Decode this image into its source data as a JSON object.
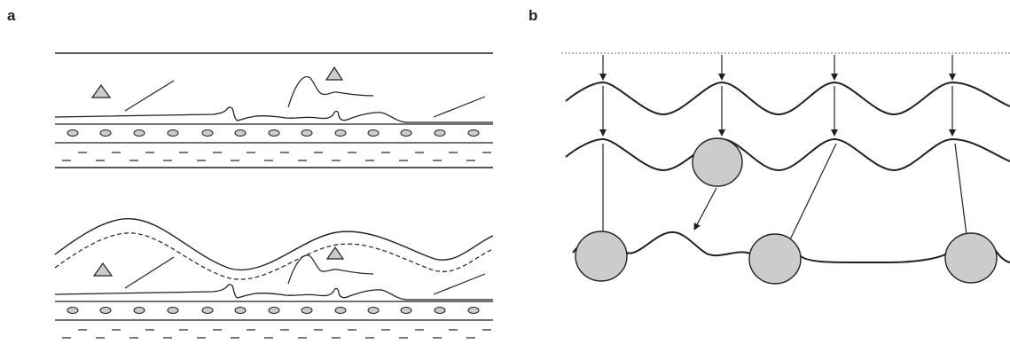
{
  "panels": {
    "a": {
      "label": "a"
    },
    "b": {
      "label": "b"
    }
  },
  "colors": {
    "stroke": "#231f20",
    "fill_gray": "#cccccc",
    "dotted": "#8a8a8a"
  }
}
